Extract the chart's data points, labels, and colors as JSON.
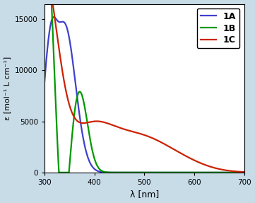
{
  "xlabel": "λ [nm]",
  "ylabel": "ε [mol⁻¹ L cm⁻¹]",
  "xlim": [
    300,
    700
  ],
  "ylim": [
    0,
    16500
  ],
  "yticks": [
    0,
    5000,
    10000,
    15000
  ],
  "xticks": [
    300,
    400,
    500,
    600,
    700
  ],
  "color_1A": "#4040cc",
  "color_1B": "#009900",
  "color_1C": "#cc2200",
  "legend_labels": [
    "1A",
    "1B",
    "1C"
  ],
  "background_color": "#ffffff",
  "outer_bg": "#c8dce8",
  "linewidth": 1.6
}
